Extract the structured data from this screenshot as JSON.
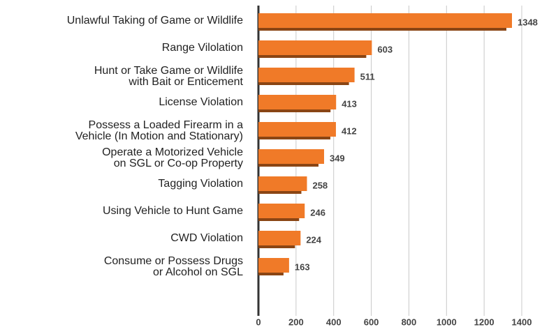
{
  "chart_data": {
    "type": "barh",
    "categories": [
      "Unlawful Taking of Game or Wildlife",
      "Range Vilolation",
      "Hunt or Take Game or Wildlife\nwith Bait or Enticement",
      "License Violation",
      "Possess a Loaded Firearm in a\nVehicle (In Motion and Stationary)",
      "Operate a Motorized Vehicle\non SGL or Co-op Property",
      "Tagging Violation",
      "Using Vehicle to Hunt Game",
      "CWD Violation",
      "Consume or Possess Drugs\nor Alcohol on SGL"
    ],
    "values": [
      1348,
      603,
      511,
      413,
      412,
      349,
      258,
      246,
      224,
      163
    ],
    "color": "#f07a28",
    "xlim": [
      0,
      1400
    ],
    "xticks": [
      0,
      200,
      400,
      600,
      800,
      1000,
      1200,
      1400
    ],
    "grid": true
  }
}
